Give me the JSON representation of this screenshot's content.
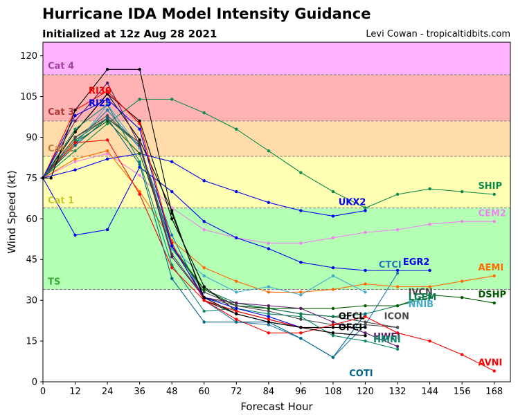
{
  "header": {
    "title": "Hurricane IDA Model Intensity Guidance",
    "subtitle": "Initialized at 12z Aug 28 2021",
    "credit": "Levi Cowan - tropicaltidbits.com"
  },
  "chart_data": {
    "type": "line",
    "title": "Hurricane IDA Model Intensity Guidance",
    "subtitle": "Initialized at 12z Aug 28 2021",
    "xlabel": "Forecast Hour",
    "ylabel": "Wind Speed (kt)",
    "xlim": [
      0,
      174
    ],
    "ylim": [
      0,
      125
    ],
    "xticks": [
      0,
      12,
      24,
      36,
      48,
      60,
      72,
      84,
      96,
      108,
      120,
      132,
      144,
      156,
      168
    ],
    "yticks": [
      0,
      15,
      30,
      45,
      60,
      75,
      90,
      105,
      120
    ],
    "bands": [
      {
        "label": "TS",
        "from": 34,
        "to": 64,
        "color": "#b3ffb3",
        "label_color": "#3aaa3a",
        "label_y": 37
      },
      {
        "label": "Cat 1",
        "from": 64,
        "to": 83,
        "color": "#ffffb3",
        "label_color": "#c8c832",
        "label_y": 67
      },
      {
        "label": "Cat 2",
        "from": 83,
        "to": 96,
        "color": "#ffdcaa",
        "label_color": "#c08040",
        "label_y": 86
      },
      {
        "label": "Cat 3",
        "from": 96,
        "to": 113,
        "color": "#ffb3b3",
        "label_color": "#b03a3a",
        "label_y": 99.5
      },
      {
        "label": "Cat 4",
        "from": 113,
        "to": 125,
        "color": "#ffb3ff",
        "label_color": "#a040a0",
        "label_y": 116.5
      }
    ],
    "series": [
      {
        "name": "SHIP",
        "color": "#0a8a4a",
        "x": [
          0,
          12,
          24,
          36,
          48,
          60,
          72,
          84,
          96,
          108,
          120,
          132,
          144,
          156,
          168
        ],
        "y": [
          75,
          85,
          95,
          104,
          104,
          99,
          93,
          85,
          77,
          70,
          64,
          69,
          71,
          70,
          69
        ],
        "label_x": 162,
        "label_y": 71
      },
      {
        "name": "CEM2",
        "color": "#ee82ee",
        "x": [
          0,
          12,
          24,
          36,
          48,
          60,
          72,
          84,
          96,
          108,
          120,
          132,
          144,
          156,
          168
        ],
        "y": [
          75,
          81,
          84,
          76,
          64,
          56,
          53,
          51,
          51,
          53,
          55,
          56,
          58,
          59,
          59
        ],
        "label_x": 162,
        "label_y": 61
      },
      {
        "name": "UKX2",
        "color": "#0000ee",
        "x": [
          0,
          12,
          24,
          36,
          48,
          60,
          72,
          84,
          96,
          108,
          120
        ],
        "y": [
          75,
          78,
          82,
          84,
          81,
          74,
          70,
          66,
          63,
          61,
          63
        ],
        "label_x": 110,
        "label_y": 65
      },
      {
        "name": "EGR2",
        "color": "#0000ee",
        "x": [
          0,
          12,
          24,
          36,
          48,
          60,
          72,
          84,
          96,
          108,
          120,
          132,
          144
        ],
        "y": [
          75,
          54,
          56,
          79,
          70,
          59,
          53,
          49,
          44,
          42,
          41,
          41,
          41
        ],
        "label_x": 134,
        "label_y": 43
      },
      {
        "name": "CTCI",
        "color": "#1f77b4",
        "x": [
          0,
          12,
          24,
          36,
          48,
          60,
          72,
          84,
          96,
          108,
          120,
          132
        ],
        "y": [
          75,
          88,
          100,
          86,
          54,
          30,
          22,
          21,
          16,
          9,
          21,
          40
        ],
        "label_x": 125,
        "label_y": 42
      },
      {
        "name": "AEMI",
        "color": "#ff6a00",
        "x": [
          0,
          12,
          24,
          36,
          48,
          60,
          72,
          84,
          96,
          108,
          120,
          132,
          144,
          156,
          168
        ],
        "y": [
          75,
          82,
          85,
          70,
          52,
          42,
          37,
          33,
          33,
          34,
          36,
          35,
          35,
          37,
          39
        ],
        "label_x": 162,
        "label_y": 41
      },
      {
        "name": "IVCN",
        "color": "#4a4a4a",
        "x": [
          0,
          12,
          24,
          36,
          48,
          60,
          72,
          84,
          96,
          108,
          120,
          132
        ],
        "y": [
          75,
          90,
          98,
          87,
          50,
          33,
          28,
          27,
          25,
          24,
          22,
          20
        ],
        "label_x": 136,
        "label_y": 32
      },
      {
        "name": "LGEM",
        "color": "#0a7a4a",
        "x": [
          0,
          12,
          24,
          36,
          48,
          60,
          72,
          84,
          96,
          108,
          120,
          132,
          144
        ],
        "y": [
          75,
          89,
          97,
          87,
          49,
          34,
          29,
          27,
          25,
          24,
          25,
          28,
          31
        ],
        "label_x": 136,
        "label_y": 30
      },
      {
        "name": "DSHP",
        "color": "#005a00",
        "x": [
          0,
          12,
          24,
          36,
          48,
          60,
          72,
          84,
          96,
          108,
          120,
          132,
          144,
          156,
          168
        ],
        "y": [
          75,
          88,
          96,
          84,
          50,
          34,
          28,
          27,
          27,
          27,
          28,
          28,
          32,
          31,
          29
        ],
        "label_x": 162,
        "label_y": 31
      },
      {
        "name": "NNIB",
        "color": "#44aacc",
        "x": [
          0,
          12,
          24,
          36,
          48,
          60,
          72,
          84,
          96,
          108,
          120
        ],
        "y": [
          75,
          87,
          102,
          86,
          49,
          39,
          33,
          35,
          32,
          39,
          33
        ],
        "label_x": 136,
        "label_y": 27.5
      },
      {
        "name": "OFCL",
        "color": "#000000",
        "x": [
          0,
          12,
          24,
          36,
          48,
          60,
          72,
          84,
          96,
          108,
          120
        ],
        "y": [
          75,
          92,
          106,
          96,
          60,
          35,
          26,
          23,
          20,
          18,
          17
        ],
        "label_x": 110,
        "label_y": 23
      },
      {
        "name": "OFCI",
        "color": "#000000",
        "x": [
          0,
          12,
          24,
          36,
          48,
          60,
          72,
          84,
          96,
          108,
          120
        ],
        "y": [
          75,
          92,
          106,
          89,
          63,
          30,
          25,
          22,
          20,
          20,
          20
        ],
        "label_x": 110,
        "label_y": 19
      },
      {
        "name": "ICON",
        "color": "#4a4a4a",
        "x": [
          0,
          12,
          24,
          36,
          48,
          60,
          72,
          84,
          96,
          108,
          120,
          132
        ],
        "y": [
          75,
          90,
          97,
          88,
          47,
          31,
          28,
          26,
          23,
          21,
          21,
          20
        ],
        "label_x": 127,
        "label_y": 23
      },
      {
        "name": "HWFI",
        "color": "#5a1a6a",
        "x": [
          0,
          12,
          24,
          36,
          48,
          60,
          72,
          84,
          96,
          108,
          120,
          132
        ],
        "y": [
          75,
          96,
          110,
          87,
          46,
          31,
          29,
          28,
          27,
          22,
          18,
          13
        ],
        "label_x": 123,
        "label_y": 15.5
      },
      {
        "name": "HMNI",
        "color": "#0a8a6a",
        "x": [
          0,
          12,
          24,
          36,
          48,
          60,
          72,
          84,
          96,
          108,
          120,
          132
        ],
        "y": [
          75,
          93,
          102,
          81,
          43,
          26,
          27,
          25,
          24,
          17,
          15,
          12
        ],
        "label_x": 123,
        "label_y": 14.5
      },
      {
        "name": "AVNI",
        "color": "#ff0000",
        "x": [
          0,
          12,
          24,
          36,
          48,
          60,
          72,
          84,
          96,
          108,
          120,
          132,
          144,
          156,
          168
        ],
        "y": [
          75,
          88,
          89,
          69,
          42,
          30,
          23,
          18,
          18,
          21,
          24,
          18,
          15,
          10,
          4
        ],
        "label_x": 162,
        "label_y": 6
      },
      {
        "name": "COTI",
        "color": "#00678a",
        "x": [
          0,
          12,
          24,
          36,
          48,
          60,
          72,
          84,
          96,
          108,
          120
        ],
        "y": [
          75,
          87,
          97,
          80,
          38,
          22,
          22,
          22,
          16,
          9,
          25
        ],
        "label_x": 114,
        "label_y": 2
      },
      {
        "name": "RI30",
        "color": "#ff0000",
        "x": [
          0,
          12,
          24,
          36,
          48,
          60,
          72,
          84,
          96,
          108
        ],
        "y": [
          75,
          100,
          107,
          95,
          51,
          30,
          26,
          23,
          20,
          18
        ],
        "label_x": 17,
        "label_y": 106
      },
      {
        "name": "RI25",
        "color": "#0000ee",
        "x": [
          0,
          12,
          24,
          36,
          48,
          60,
          72,
          84,
          96
        ],
        "y": [
          75,
          98,
          104,
          93,
          50,
          31,
          27,
          24,
          20
        ],
        "label_x": 17,
        "label_y": 101.5
      },
      {
        "name": "",
        "color": "#000000",
        "x": [
          0,
          3,
          12,
          24,
          36,
          48,
          60,
          72,
          84,
          96,
          108,
          120
        ],
        "y": [
          75,
          75,
          100,
          115,
          115,
          62,
          31,
          25,
          22,
          20,
          18,
          17
        ],
        "label_x": null,
        "label_y": null
      }
    ]
  }
}
